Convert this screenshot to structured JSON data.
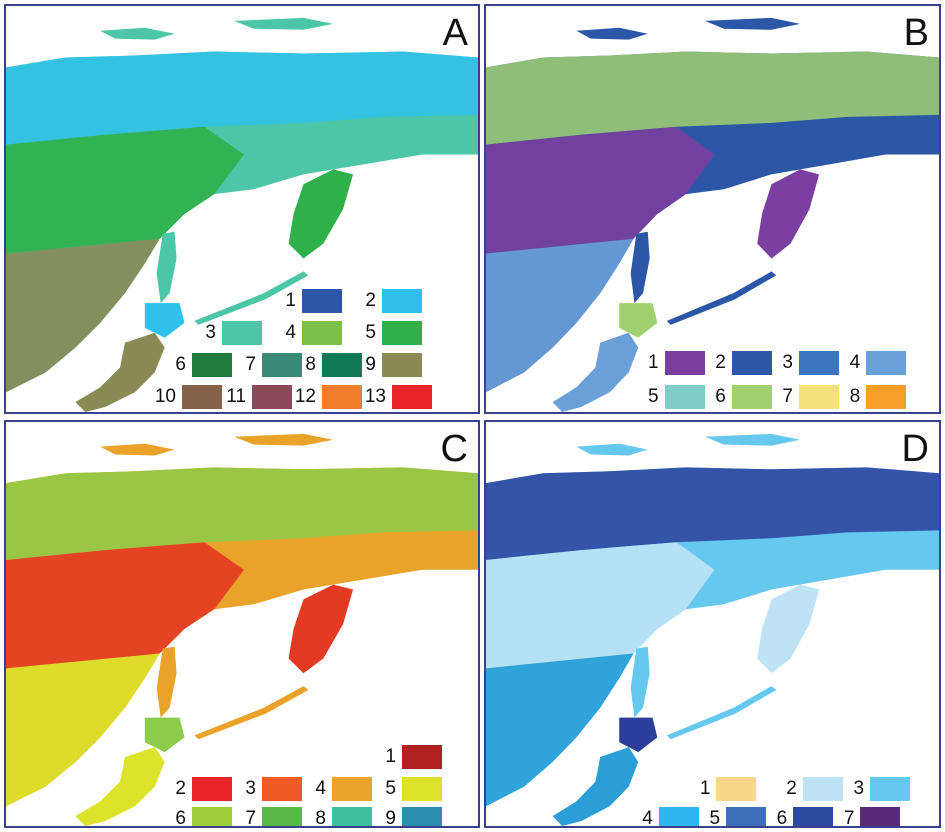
{
  "panels": [
    {
      "id": "a",
      "letter": "A",
      "land": [
        "#4cc6a6",
        "#2fb04a",
        "#8a8a55",
        "#2fc1ec"
      ],
      "legend": [
        {
          "label": "1",
          "color": "#2b57a6"
        },
        {
          "label": "2",
          "color": "#2fc1ec"
        },
        {
          "label": "3",
          "color": "#4cc6a6"
        },
        {
          "label": "4",
          "color": "#7cc04a"
        },
        {
          "label": "5",
          "color": "#2fb04a"
        },
        {
          "label": "6",
          "color": "#217b3e"
        },
        {
          "label": "7",
          "color": "#3a8a77"
        },
        {
          "label": "8",
          "color": "#0f7a55"
        },
        {
          "label": "9",
          "color": "#8a8a55"
        },
        {
          "label": "10",
          "color": "#86614a"
        },
        {
          "label": "11",
          "color": "#8a4a55"
        },
        {
          "label": "12",
          "color": "#ef7d2a"
        },
        {
          "label": "13",
          "color": "#e8262a"
        }
      ]
    },
    {
      "id": "b",
      "letter": "B",
      "land": [
        "#2b57a6",
        "#7a3fa0",
        "#6aa0d8",
        "#a0d070"
      ],
      "legend": [
        {
          "label": "1",
          "color": "#7a3fa0"
        },
        {
          "label": "2",
          "color": "#2b57a6"
        },
        {
          "label": "3",
          "color": "#3d74c2"
        },
        {
          "label": "4",
          "color": "#6aa0d8"
        },
        {
          "label": "5",
          "color": "#80cec8"
        },
        {
          "label": "6",
          "color": "#a0d070"
        },
        {
          "label": "7",
          "color": "#f5e07a"
        },
        {
          "label": "8",
          "color": "#f5a02a"
        }
      ]
    },
    {
      "id": "c",
      "letter": "C",
      "land": [
        "#e9a22a",
        "#e33a24",
        "#dde22a",
        "#8ccc4a"
      ],
      "legend": [
        {
          "label": "1",
          "color": "#b02222"
        },
        {
          "label": "2",
          "color": "#e8262a"
        },
        {
          "label": "3",
          "color": "#ee5a26"
        },
        {
          "label": "4",
          "color": "#e9a22a"
        },
        {
          "label": "5",
          "color": "#dde22a"
        },
        {
          "label": "6",
          "color": "#9cd038"
        },
        {
          "label": "7",
          "color": "#58b848"
        },
        {
          "label": "8",
          "color": "#3ebfa0"
        },
        {
          "label": "9",
          "color": "#2a8fb0"
        }
      ]
    },
    {
      "id": "d",
      "letter": "D",
      "land": [
        "#67c8ef",
        "#bde3f5",
        "#2b9ed8",
        "#2b3f9a"
      ],
      "legend": [
        {
          "label": "1",
          "color": "#f7d88a"
        },
        {
          "label": "2",
          "color": "#bde3f5"
        },
        {
          "label": "3",
          "color": "#67c8ef"
        },
        {
          "label": "4",
          "color": "#2fb6ec"
        },
        {
          "label": "5",
          "color": "#3a6fb8"
        },
        {
          "label": "6",
          "color": "#2b4aa0"
        },
        {
          "label": "7",
          "color": "#5a2a7a"
        }
      ]
    }
  ]
}
